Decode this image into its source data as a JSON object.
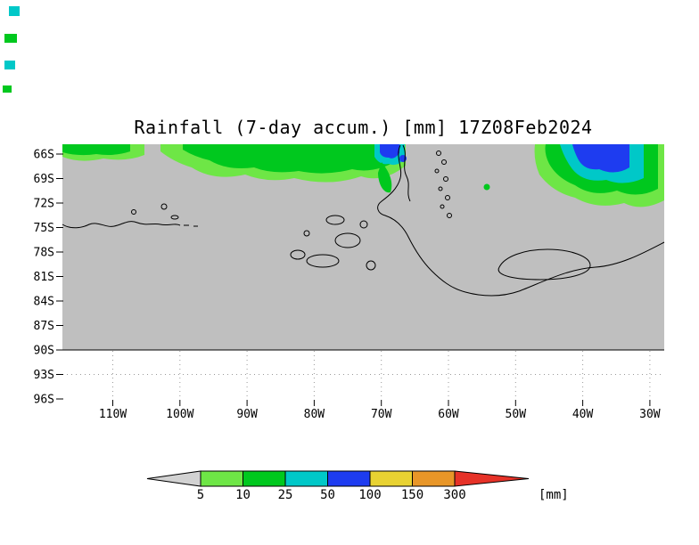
{
  "figure": {
    "title": "Rainfall (7-day accum.) [mm] 17Z08Feb2024"
  },
  "chart_data": {
    "type": "heatmap",
    "title": "Rainfall (7-day accum.) [mm] 17Z08Feb2024",
    "variable": "Rainfall (7-day accum.)",
    "valid_time": "17Z08Feb2024",
    "units": "mm",
    "x_axis": {
      "ticks": [
        "110W",
        "100W",
        "90W",
        "80W",
        "70W",
        "60W",
        "50W",
        "40W",
        "30W"
      ]
    },
    "y_axis": {
      "ticks": [
        "66S",
        "69S",
        "72S",
        "75S",
        "78S",
        "81S",
        "84S",
        "87S",
        "90S",
        "93S",
        "96S"
      ]
    },
    "colorbar": {
      "boundary_labels": [
        "5",
        "10",
        "25",
        "50",
        "100",
        "150",
        "300"
      ],
      "segment_colors": [
        "#d2d2d2",
        "#6ee646",
        "#00c81e",
        "#00c8c8",
        "#1e3cf0",
        "#e8d232",
        "#e89628",
        "#e63228"
      ],
      "unit_label": "[mm]"
    },
    "map": {
      "land_shade_color": "#bfbfbf",
      "below_90S_color": "#ffffff",
      "shaded_regions": [
        {
          "location": "band along 66S-68S from 120W to about 75W",
          "value_mm": "10-25 with 5-10 fringes"
        },
        {
          "location": "near 66S-68S around 71W-69W",
          "value_mm": "50-100 core inside 25-50 patch"
        },
        {
          "location": "66S-71S between about 47W and 30W",
          "value_mm": "50-100 core ringed by 25-50, 10-25 and 5-10"
        },
        {
          "location": "isolated speck near 70S 57W",
          "value_mm": "10-25"
        }
      ]
    }
  }
}
